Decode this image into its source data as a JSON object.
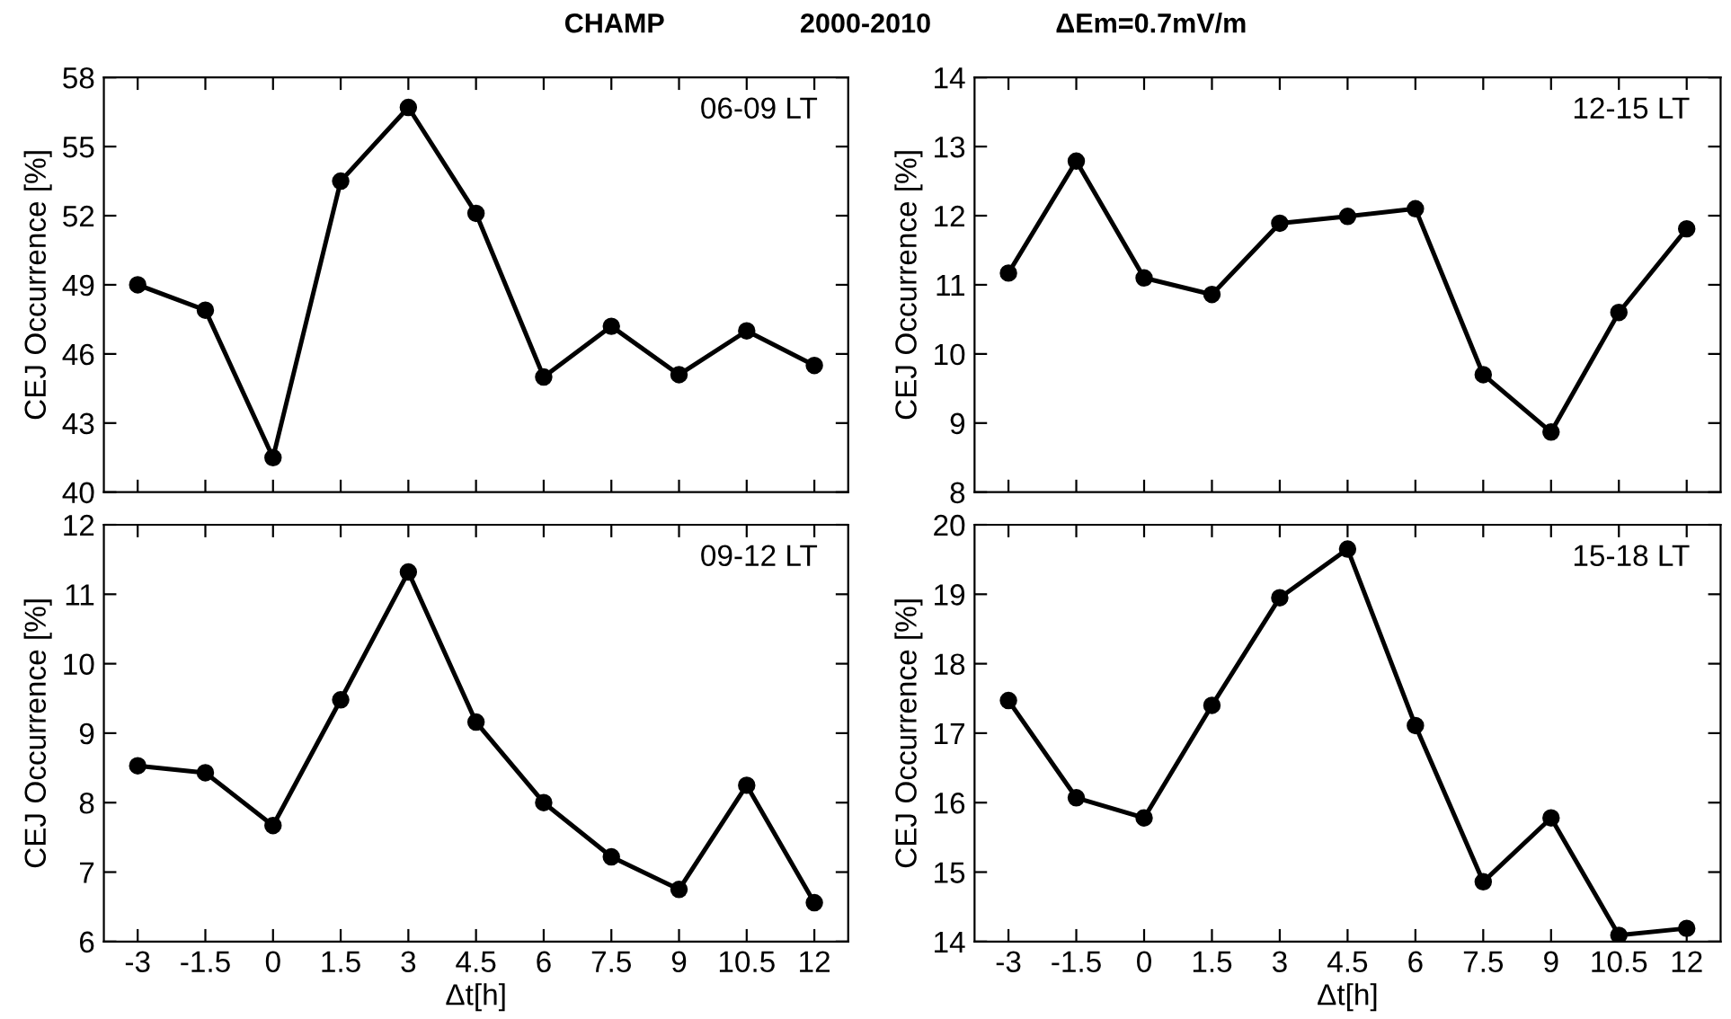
{
  "chart_data": [
    {
      "type": "line",
      "title": "06-09 LT",
      "ylabel": "CEJ Occurrence [%]",
      "annotations": [
        "CHAMP",
        "2000-2010",
        "ΔEm=0.7mV/m"
      ],
      "x": [
        -3,
        -1.5,
        0,
        1.5,
        3,
        4.5,
        6,
        7.5,
        9,
        10.5,
        12
      ],
      "series": [
        {
          "color": "#000000",
          "values": [
            49.0,
            47.9,
            41.5,
            53.5,
            56.7,
            52.1,
            45.0,
            47.2,
            45.1,
            47.0,
            45.5
          ]
        }
      ],
      "xlim": [
        -3.75,
        12.75
      ],
      "xticks": [
        -3,
        -1.5,
        0,
        1.5,
        3,
        4.5,
        6,
        7.5,
        9,
        10.5,
        12
      ],
      "ylim": [
        40,
        58
      ],
      "yticks": [
        40,
        43,
        46,
        49,
        52,
        55,
        58
      ],
      "tick_labels": "y",
      "marker": "circle",
      "line_style": "solid",
      "grid": false,
      "legend": false
    },
    {
      "type": "line",
      "title": "12-15 LT",
      "ylabel": "CEJ Occurrence [%]",
      "x": [
        -3,
        -1.5,
        0,
        1.5,
        3,
        4.5,
        6,
        7.5,
        9,
        10.5,
        12
      ],
      "series": [
        {
          "color": "#000000",
          "values": [
            11.17,
            12.79,
            11.1,
            10.86,
            11.89,
            11.99,
            12.1,
            9.7,
            8.87,
            10.6,
            11.81
          ]
        }
      ],
      "xlim": [
        -3.75,
        12.75
      ],
      "xticks": [
        -3,
        -1.5,
        0,
        1.5,
        3,
        4.5,
        6,
        7.5,
        9,
        10.5,
        12
      ],
      "ylim": [
        8,
        14
      ],
      "yticks": [
        8,
        9,
        10,
        11,
        12,
        13,
        14
      ],
      "tick_labels": "y",
      "marker": "circle",
      "line_style": "solid",
      "grid": false,
      "legend": false
    },
    {
      "type": "line",
      "title": "09-12 LT",
      "xlabel": "Δt[h]",
      "ylabel": "CEJ Occurrence [%]",
      "x": [
        -3,
        -1.5,
        0,
        1.5,
        3,
        4.5,
        6,
        7.5,
        9,
        10.5,
        12
      ],
      "series": [
        {
          "color": "#000000",
          "values": [
            8.53,
            8.43,
            7.67,
            9.48,
            11.32,
            9.16,
            8.0,
            7.22,
            6.75,
            8.25,
            6.56
          ]
        }
      ],
      "xlim": [
        -3.75,
        12.75
      ],
      "xticks": [
        -3,
        -1.5,
        0,
        1.5,
        3,
        4.5,
        6,
        7.5,
        9,
        10.5,
        12
      ],
      "ylim": [
        6,
        12
      ],
      "yticks": [
        6,
        7,
        8,
        9,
        10,
        11,
        12
      ],
      "marker": "circle",
      "line_style": "solid",
      "grid": false,
      "legend": false
    },
    {
      "type": "line",
      "title": "15-18 LT",
      "xlabel": "Δt[h]",
      "ylabel": "CEJ Occurrence [%]",
      "x": [
        -3,
        -1.5,
        0,
        1.5,
        3,
        4.5,
        6,
        7.5,
        9,
        10.5,
        12
      ],
      "series": [
        {
          "color": "#000000",
          "values": [
            17.47,
            16.07,
            15.78,
            17.4,
            18.95,
            19.65,
            17.11,
            14.86,
            15.78,
            14.09,
            14.19
          ]
        }
      ],
      "xlim": [
        -3.75,
        12.75
      ],
      "xticks": [
        -3,
        -1.5,
        0,
        1.5,
        3,
        4.5,
        6,
        7.5,
        9,
        10.5,
        12
      ],
      "ylim": [
        14,
        20
      ],
      "yticks": [
        14,
        15,
        16,
        17,
        18,
        19,
        20
      ],
      "marker": "circle",
      "line_style": "solid",
      "grid": false,
      "legend": false
    }
  ]
}
